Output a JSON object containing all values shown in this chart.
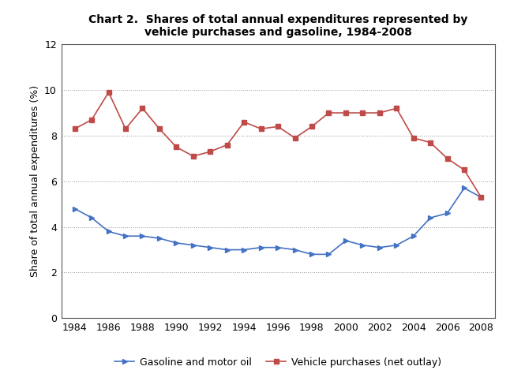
{
  "title": "Chart 2.  Shares of total annual expenditures represented by\nvehicle purchases and gasoline, 1984-2008",
  "xlabel": "",
  "ylabel": "Share of total annual expenditures (%)",
  "years": [
    1984,
    1985,
    1986,
    1987,
    1988,
    1989,
    1990,
    1991,
    1992,
    1993,
    1994,
    1995,
    1996,
    1997,
    1998,
    1999,
    2000,
    2001,
    2002,
    2003,
    2004,
    2005,
    2006,
    2007,
    2008
  ],
  "gasoline": [
    4.8,
    4.4,
    3.8,
    3.6,
    3.6,
    3.5,
    3.3,
    3.2,
    3.1,
    3.0,
    3.0,
    3.1,
    3.1,
    3.0,
    2.8,
    2.8,
    3.4,
    3.2,
    3.1,
    3.2,
    3.6,
    4.4,
    4.6,
    5.7,
    5.3
  ],
  "vehicle": [
    8.3,
    8.7,
    9.9,
    8.3,
    9.2,
    8.3,
    7.5,
    7.1,
    7.3,
    7.6,
    8.6,
    8.3,
    8.4,
    7.9,
    8.4,
    9.0,
    9.0,
    9.0,
    9.0,
    9.2,
    7.9,
    7.7,
    7.0,
    6.5,
    5.3
  ],
  "gasoline_color": "#4472C4",
  "vehicle_color": "#BE4B48",
  "ylim": [
    0,
    12
  ],
  "yticks": [
    0,
    2,
    4,
    6,
    8,
    10,
    12
  ],
  "xticks": [
    1984,
    1986,
    1988,
    1990,
    1992,
    1994,
    1996,
    1998,
    2000,
    2002,
    2004,
    2006,
    2008
  ],
  "legend_gasoline": "Gasoline and motor oil",
  "legend_vehicle": "Vehicle purchases (net outlay)",
  "background_color": "#ffffff",
  "grid_color": "#999999",
  "title_fontsize": 10,
  "axis_fontsize": 9,
  "tick_fontsize": 9
}
